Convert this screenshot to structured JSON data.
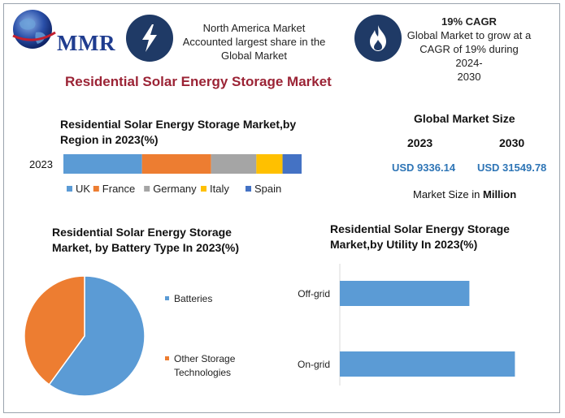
{
  "header": {
    "logo_text": "MMR",
    "box1_text": [
      "North America Market",
      "Accounted largest share in the",
      "Global Market"
    ],
    "box2_title": "19% CAGR",
    "box2_text": [
      "Global Market to grow at a",
      "CAGR of 19% during 2024-",
      "2030"
    ]
  },
  "title": "Residential Solar Energy Storage Market",
  "market_size": {
    "title": "Global Market Size",
    "year_a": "2023",
    "year_b": "2030",
    "value_a": "USD 9336.14",
    "value_b": "USD 31549.78",
    "unit_prefix": "Market Size in",
    "unit_bold": "Million"
  },
  "colors": {
    "blue": "#5b9bd5",
    "orange": "#ed7d31",
    "gray": "#a5a5a5",
    "yellow": "#ffc000",
    "darkblue": "#4472c4",
    "icon_bg": "#1f3a66",
    "title_red": "#9b2335",
    "usd_blue": "#2e75b6"
  },
  "icons": [
    "globe-icon",
    "lightning-icon",
    "flame-icon"
  ],
  "chart_data": [
    {
      "type": "bar",
      "orientation": "horizontal-stacked",
      "title": [
        "Residential Solar Energy Storage Market,by",
        "Region in 2023(%)"
      ],
      "categories": [
        "2023"
      ],
      "series": [
        {
          "name": "UK",
          "values": [
            33
          ],
          "color": "#5b9bd5"
        },
        {
          "name": "France",
          "values": [
            29
          ],
          "color": "#ed7d31"
        },
        {
          "name": "Germany",
          "values": [
            19
          ],
          "color": "#a5a5a5"
        },
        {
          "name": "Italy",
          "values": [
            11
          ],
          "color": "#ffc000"
        },
        {
          "name": "Spain",
          "values": [
            8
          ],
          "color": "#4472c4"
        }
      ],
      "legend": "bottom"
    },
    {
      "type": "pie",
      "title": [
        "Residential Solar Energy Storage",
        "Market, by Battery Type In 2023(%)"
      ],
      "slices": [
        {
          "label": "Batteries",
          "value": 60,
          "color": "#5b9bd5"
        },
        {
          "label": "Other Storage Technologies",
          "label_lines": [
            "Other Storage",
            "Technologies"
          ],
          "value": 40,
          "color": "#ed7d31"
        }
      ],
      "legend": "right"
    },
    {
      "type": "bar",
      "orientation": "horizontal",
      "title": [
        "Residential Solar Energy Storage",
        "Market,by Utility In 2023(%)"
      ],
      "categories": [
        "Off-grid",
        "On-grid"
      ],
      "values": [
        37,
        50
      ],
      "xlim": [
        0,
        52
      ],
      "color": "#5b9bd5"
    }
  ]
}
